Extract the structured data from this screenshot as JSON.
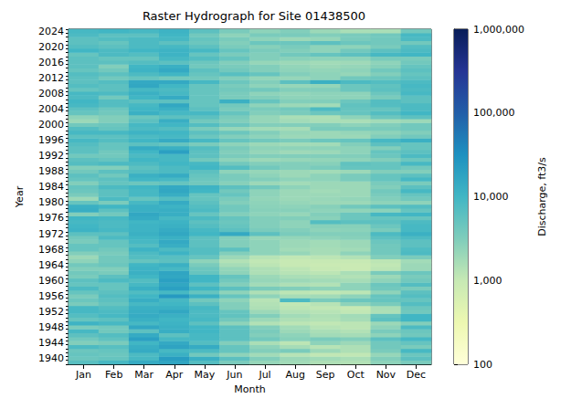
{
  "chart_data": {
    "type": "heatmap",
    "title": "Raster Hydrograph for Site 01438500",
    "xlabel": "Month",
    "ylabel": "Year",
    "x": [
      "Jan",
      "Feb",
      "Mar",
      "Apr",
      "May",
      "Jun",
      "Jul",
      "Aug",
      "Sep",
      "Oct",
      "Nov",
      "Dec"
    ],
    "y": [
      null,
      1940,
      null,
      null,
      null,
      1944,
      null,
      null,
      null,
      1948,
      null,
      null,
      null,
      1952,
      null,
      null,
      null,
      1956,
      null,
      null,
      null,
      1960,
      null,
      null,
      null,
      1964,
      null,
      null,
      null,
      1968,
      null,
      null,
      null,
      1972,
      null,
      null,
      null,
      1976,
      null,
      null,
      null,
      1980,
      null,
      null,
      null,
      1984,
      null,
      null,
      null,
      1988,
      null,
      null,
      null,
      1992,
      null,
      null,
      null,
      1996,
      null,
      null,
      null,
      2000,
      null,
      null,
      null,
      2004,
      null,
      null,
      null,
      2008,
      null,
      null,
      null,
      2012,
      null,
      null,
      null,
      2016,
      null,
      null,
      null,
      2020,
      null,
      null,
      null,
      2024
    ],
    "values": [
      [
        6500,
        9000,
        14000,
        17000,
        7000,
        3500,
        2200,
        1800,
        1500,
        1400,
        2500,
        3500
      ],
      [
        4500,
        5000,
        9000,
        22000,
        12000,
        6000,
        3000,
        2000,
        1800,
        1600,
        3000,
        6000
      ],
      [
        5000,
        4500,
        8000,
        12000,
        4000,
        2500,
        1800,
        1300,
        1100,
        1100,
        2200,
        4500
      ],
      [
        4500,
        5000,
        14000,
        9000,
        8000,
        5000,
        3000,
        3500,
        2000,
        1500,
        3500,
        9000
      ],
      [
        8000,
        6500,
        13000,
        18000,
        14000,
        5000,
        2500,
        1700,
        1300,
        1500,
        4000,
        3500
      ],
      [
        3000,
        3500,
        10000,
        15000,
        7000,
        3000,
        1600,
        1200,
        2500,
        2000,
        4000,
        5000
      ],
      [
        4000,
        5500,
        20000,
        9000,
        9000,
        6000,
        4000,
        2800,
        3500,
        3000,
        6000,
        9000
      ],
      [
        6000,
        7000,
        14000,
        6000,
        9000,
        6000,
        3000,
        2500,
        1800,
        1700,
        2500,
        4000
      ],
      [
        9000,
        4000,
        6000,
        13000,
        10000,
        6000,
        3500,
        2000,
        1600,
        1400,
        3500,
        4500
      ],
      [
        3500,
        4000,
        16000,
        12000,
        10000,
        6000,
        3000,
        1800,
        1300,
        1200,
        2500,
        8000
      ],
      [
        11000,
        9000,
        9000,
        11000,
        6000,
        2500,
        1400,
        1200,
        1100,
        1200,
        2000,
        3000
      ],
      [
        5000,
        6000,
        12000,
        10000,
        9000,
        4000,
        2000,
        1500,
        1400,
        1700,
        6000,
        10000
      ],
      [
        7000,
        9000,
        14000,
        12000,
        8000,
        5500,
        3000,
        1800,
        1500,
        1800,
        5000,
        10000
      ],
      [
        9000,
        8000,
        13000,
        16000,
        8000,
        5000,
        2000,
        1400,
        1300,
        1100,
        1500,
        4000
      ],
      [
        9000,
        7000,
        12000,
        12000,
        9000,
        3000,
        1500,
        1200,
        1100,
        1000,
        1600,
        4500
      ],
      [
        3500,
        5000,
        9000,
        10000,
        6000,
        3000,
        1400,
        1100,
        1300,
        2500,
        3500,
        7000
      ],
      [
        4500,
        6000,
        13000,
        9000,
        4000,
        2500,
        1300,
        8000,
        3500,
        4500,
        5000,
        5000
      ],
      [
        3500,
        7000,
        10000,
        24000,
        12000,
        5000,
        2500,
        1700,
        1800,
        2500,
        5000,
        7000
      ],
      [
        5000,
        6000,
        7500,
        9000,
        5000,
        2500,
        1500,
        1200,
        1100,
        1200,
        2500,
        6000
      ],
      [
        8000,
        5000,
        12000,
        20000,
        10000,
        6000,
        3500,
        3000,
        2500,
        2500,
        4000,
        3500
      ],
      [
        5000,
        5000,
        9000,
        16000,
        6000,
        3000,
        1800,
        1500,
        1400,
        2500,
        4500,
        7000
      ],
      [
        6000,
        8000,
        7000,
        20000,
        10000,
        4000,
        2200,
        2000,
        1800,
        1700,
        2500,
        4000
      ],
      [
        3500,
        6000,
        10000,
        16000,
        10000,
        5000,
        2000,
        1600,
        1500,
        1400,
        2000,
        3500
      ],
      [
        4000,
        3500,
        12000,
        17000,
        5000,
        2500,
        1500,
        1300,
        1200,
        1600,
        3500,
        4500
      ],
      [
        3000,
        3000,
        11000,
        9000,
        4500,
        2300,
        1500,
        1200,
        1000,
        900,
        1200,
        2000
      ],
      [
        4000,
        4500,
        10000,
        12000,
        3500,
        1700,
        1200,
        1000,
        900,
        900,
        1100,
        2000
      ],
      [
        2500,
        4000,
        5000,
        6000,
        2500,
        1400,
        1100,
        1000,
        1000,
        1000,
        1200,
        1800
      ],
      [
        2000,
        4000,
        7000,
        6500,
        5000,
        2000,
        1300,
        1100,
        1200,
        1400,
        3000,
        3500
      ],
      [
        3000,
        3500,
        8000,
        11000,
        7000,
        3000,
        2500,
        2200,
        1700,
        2500,
        4000,
        8000
      ],
      [
        5000,
        4000,
        11000,
        8000,
        7000,
        6000,
        2500,
        1800,
        1700,
        1800,
        4000,
        7500
      ],
      [
        5000,
        5000,
        7000,
        13000,
        6000,
        3000,
        2500,
        2000,
        1800,
        2000,
        4000,
        6000
      ],
      [
        3500,
        5000,
        9000,
        15000,
        6000,
        3000,
        2500,
        2000,
        1800,
        2000,
        4500,
        6000
      ],
      [
        4000,
        8000,
        10000,
        12000,
        6000,
        3000,
        2200,
        2300,
        2500,
        2800,
        6000,
        8000
      ],
      [
        6000,
        6000,
        12000,
        16000,
        10000,
        15000,
        6000,
        3500,
        3000,
        3000,
        8000,
        12000
      ],
      [
        11000,
        9000,
        11000,
        14000,
        9000,
        6000,
        3500,
        3000,
        2500,
        2600,
        3500,
        9000
      ],
      [
        10000,
        8000,
        11000,
        12000,
        7000,
        5000,
        3000,
        2500,
        2800,
        2800,
        4500,
        9000
      ],
      [
        9000,
        8000,
        10000,
        11000,
        6000,
        4500,
        3000,
        2500,
        7000,
        6000,
        6000,
        8000
      ],
      [
        10000,
        9000,
        14000,
        9000,
        8000,
        5000,
        3000,
        3000,
        2700,
        4500,
        5000,
        5000
      ],
      [
        3000,
        4000,
        16000,
        13000,
        5000,
        3000,
        2500,
        2200,
        3000,
        4500,
        9000,
        10000
      ],
      [
        13000,
        6000,
        12000,
        13000,
        8000,
        4000,
        2800,
        2800,
        2500,
        2400,
        2600,
        5000
      ],
      [
        12000,
        10000,
        12000,
        11000,
        7000,
        4000,
        2600,
        2500,
        2800,
        4000,
        6000,
        7000
      ],
      [
        5000,
        3500,
        9000,
        14000,
        6000,
        3000,
        2500,
        2200,
        2000,
        2000,
        2500,
        2500
      ],
      [
        2000,
        8000,
        5000,
        7000,
        5000,
        3500,
        2300,
        2000,
        2100,
        2300,
        3000,
        4000
      ],
      [
        3500,
        6000,
        9000,
        13000,
        5000,
        5000,
        2500,
        2000,
        2000,
        2000,
        3500,
        5000
      ],
      [
        4500,
        6000,
        9000,
        16000,
        10000,
        4000,
        2500,
        2000,
        1800,
        2000,
        4000,
        9000
      ],
      [
        5000,
        8000,
        10000,
        15000,
        11000,
        6000,
        4000,
        2500,
        2000,
        2000,
        3000,
        6000
      ],
      [
        3000,
        5000,
        4500,
        5000,
        4000,
        2800,
        2000,
        1800,
        2000,
        2000,
        3500,
        3500
      ],
      [
        5000,
        6000,
        10000,
        9000,
        4500,
        3500,
        3000,
        2500,
        2500,
        3500,
        5000,
        9000
      ],
      [
        6000,
        4000,
        12000,
        14000,
        5000,
        3500,
        2500,
        2000,
        2500,
        3500,
        5000,
        6000
      ],
      [
        4000,
        6000,
        7000,
        8000,
        6000,
        2500,
        2200,
        2000,
        1800,
        2000,
        3000,
        3000
      ],
      [
        3000,
        3000,
        6000,
        8000,
        10000,
        7000,
        4000,
        3000,
        3500,
        5000,
        5000,
        4000
      ],
      [
        7000,
        8000,
        8000,
        10000,
        9000,
        4000,
        3000,
        3000,
        2800,
        5500,
        5000,
        9000
      ],
      [
        6000,
        5000,
        10000,
        9000,
        4000,
        2500,
        2000,
        2200,
        2300,
        2500,
        3000,
        4500
      ],
      [
        4000,
        4000,
        8000,
        9000,
        6000,
        3500,
        3000,
        3000,
        3000,
        3000,
        4500,
        8000
      ],
      [
        6000,
        4000,
        10000,
        20000,
        6000,
        3000,
        2200,
        1900,
        2000,
        2500,
        5000,
        6000
      ],
      [
        6000,
        5000,
        14000,
        12000,
        7000,
        3500,
        2500,
        2500,
        2500,
        2500,
        3000,
        5000
      ],
      [
        7000,
        5000,
        6000,
        5000,
        3500,
        2500,
        2000,
        1800,
        1800,
        3000,
        6000,
        5000
      ],
      [
        9000,
        7000,
        10000,
        14000,
        9000,
        5000,
        4000,
        3500,
        4500,
        5000,
        9000,
        12000
      ],
      [
        6000,
        6000,
        8000,
        9000,
        4500,
        3000,
        2500,
        2000,
        2000,
        2000,
        3000,
        4000
      ],
      [
        9000,
        9000,
        11000,
        10000,
        6000,
        4500,
        3000,
        2200,
        2000,
        2200,
        2500,
        3000
      ],
      [
        7000,
        5000,
        8000,
        7000,
        3500,
        2200,
        1800,
        1700,
        3500,
        3500,
        3500,
        4000
      ],
      [
        4000,
        4500,
        9000,
        10000,
        7000,
        4500,
        3000,
        3000,
        3000,
        2500,
        3000,
        4000
      ],
      [
        2000,
        3000,
        6000,
        13000,
        4000,
        3000,
        2200,
        1800,
        1600,
        1600,
        1800,
        2000
      ],
      [
        2500,
        3000,
        4500,
        6000,
        6000,
        3500,
        2200,
        1600,
        1500,
        2500,
        4500,
        6000
      ],
      [
        5000,
        4000,
        12000,
        9000,
        9000,
        5000,
        3000,
        3500,
        4500,
        5000,
        7000,
        10000
      ],
      [
        6000,
        4500,
        10000,
        12000,
        6000,
        3500,
        3500,
        4000,
        8000,
        5000,
        5000,
        8000
      ],
      [
        9000,
        7000,
        9000,
        16000,
        5000,
        4000,
        2500,
        2000,
        1800,
        5500,
        7000,
        8000
      ],
      [
        10000,
        7000,
        6000,
        6000,
        5000,
        12000,
        5000,
        3000,
        3000,
        4500,
        7000,
        6000
      ],
      [
        8000,
        4000,
        10000,
        14000,
        5000,
        3500,
        3000,
        2500,
        2500,
        2500,
        3500,
        6000
      ],
      [
        9000,
        8000,
        12000,
        9000,
        5000,
        3500,
        2500,
        2300,
        2500,
        2500,
        4500,
        9000
      ],
      [
        5000,
        6000,
        9000,
        8000,
        5000,
        4000,
        4000,
        3000,
        3000,
        4500,
        6000,
        8000
      ],
      [
        7000,
        6000,
        16000,
        10000,
        5000,
        3500,
        2500,
        2200,
        2300,
        4500,
        5500,
        9000
      ],
      [
        6000,
        7000,
        15000,
        15000,
        9000,
        4500,
        3000,
        6000,
        12000,
        8000,
        7000,
        8000
      ],
      [
        6000,
        4000,
        5000,
        4000,
        4000,
        3000,
        2300,
        2200,
        2500,
        4000,
        4500,
        6000
      ],
      [
        7000,
        6000,
        8000,
        10000,
        5000,
        6500,
        5000,
        3000,
        2500,
        2200,
        3000,
        5000
      ],
      [
        5000,
        4000,
        11000,
        15000,
        6000,
        4000,
        3000,
        2500,
        2300,
        2500,
        4000,
        6000
      ],
      [
        6000,
        3000,
        10000,
        12000,
        4000,
        3500,
        3000,
        2300,
        2000,
        2200,
        2800,
        5000
      ],
      [
        6000,
        6000,
        7000,
        6000,
        4500,
        3000,
        2200,
        2000,
        1800,
        1900,
        2500,
        4000
      ],
      [
        6000,
        5000,
        5000,
        9000,
        7000,
        5000,
        3000,
        2700,
        2500,
        2500,
        3500,
        3500
      ],
      [
        5000,
        8000,
        7000,
        11000,
        5000,
        3500,
        3000,
        4000,
        5000,
        6000,
        9000,
        10000
      ],
      [
        10000,
        8000,
        10000,
        11000,
        9000,
        5000,
        3500,
        3000,
        2500,
        4000,
        6000,
        8000
      ],
      [
        7000,
        6000,
        8000,
        9000,
        6000,
        3500,
        2800,
        3500,
        2500,
        2500,
        3500,
        7000
      ],
      [
        6000,
        5000,
        8000,
        6000,
        4500,
        3000,
        4500,
        4500,
        6000,
        4500,
        4000,
        4000
      ],
      [
        6000,
        7000,
        8000,
        9000,
        5000,
        3500,
        2500,
        2000,
        2200,
        3500,
        4000,
        8000
      ],
      [
        8000,
        6000,
        6000,
        10000,
        4000,
        2500,
        3500,
        3500,
        3000,
        3500,
        4000,
        9000
      ],
      [
        9000,
        10000,
        9000,
        11000,
        6000,
        3500,
        2500,
        3000,
        2000,
        1600,
        1600,
        4000
      ]
    ],
    "colorbar": {
      "label": "Discharge, ft3/s",
      "log": true,
      "range": [
        100,
        1000000
      ],
      "ticks": [
        100,
        {
          "value": 1000,
          "label": "1,000"
        },
        {
          "value": 10000,
          "label": "10,000"
        },
        {
          "value": 100000,
          "label": "100,000"
        },
        {
          "value": 1000000,
          "label": "1,000,000"
        }
      ]
    },
    "grid": false
  }
}
